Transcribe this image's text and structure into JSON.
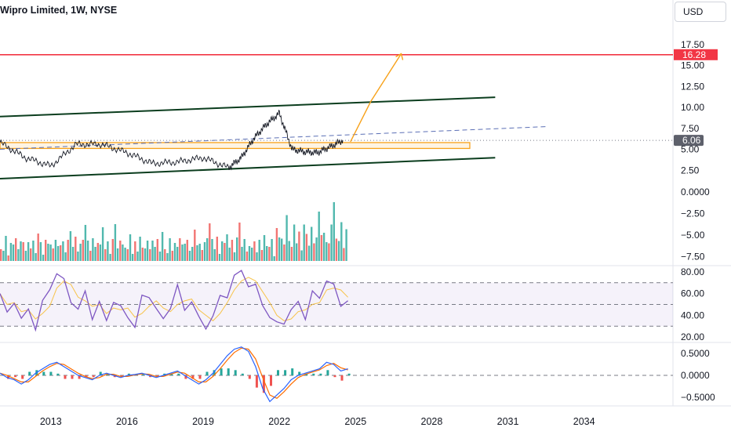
{
  "header": {
    "title": "Wipro Limited, 1W, NYSE",
    "currency": "USD"
  },
  "colors": {
    "price": "#131722",
    "channel": "#0b3d1e",
    "resistance": "#f23645",
    "projection": "#f7a21b",
    "trend_dash": "#5b6fb5",
    "rsi": "#7e57c2",
    "rsi_ma": "#f7c34a",
    "macd": "#2962ff",
    "signal": "#ff6d00",
    "vol_up": "#26a69a",
    "vol_down": "#ef5350"
  },
  "chart_data": [
    {
      "type": "line",
      "title": "Wipro Limited, 1W, NYSE",
      "x_ticks": [
        "2013",
        "2016",
        "2019",
        "2022",
        "2025",
        "2028",
        "2031",
        "2034"
      ],
      "y_ticks": [
        "17.50",
        "15.00",
        "12.50",
        "10.00",
        "7.50",
        "5.00",
        "2.50"
      ],
      "ylim": [
        0,
        20
      ],
      "series": [
        {
          "x": [
            2011.0,
            2012.0,
            2013.0,
            2014.0,
            2015.0,
            2016.0,
            2017.0,
            2018.0,
            2019.0,
            2020.0,
            2020.5,
            2021.0,
            2021.5,
            2022.0,
            2022.5,
            2023.0,
            2023.5,
            2024.0,
            2024.5
          ],
          "values": [
            5.8,
            4.0,
            3.0,
            5.6,
            5.6,
            4.6,
            3.3,
            3.5,
            4.0,
            2.8,
            4.0,
            6.3,
            8.0,
            9.3,
            5.0,
            4.7,
            4.6,
            5.3,
            6.06
          ]
        }
      ],
      "last_price_label": "6.06",
      "resistance_label": "16.28",
      "annotations": {
        "channel_upper": [
          [
            2011.0,
            8.9
          ],
          [
            2030.5,
            11.2
          ]
        ],
        "channel_lower": [
          [
            2011.0,
            1.5
          ],
          [
            2030.5,
            4.0
          ]
        ],
        "trendline_dashed": [
          [
            2011.0,
            5.0
          ],
          [
            2032.5,
            7.7
          ]
        ],
        "support_zone": [
          [
            2011.0,
            5.1
          ],
          [
            2029.5,
            5.8
          ]
        ],
        "projection_arrow": [
          [
            2024.8,
            5.9
          ],
          [
            2025.6,
            10.7
          ],
          [
            2026.8,
            16.4
          ]
        ]
      }
    },
    {
      "type": "bar",
      "title": "",
      "y_ticks": [
        "0.0000",
        "−2.50",
        "−5.00",
        "−7.50"
      ],
      "ylim": [
        -8,
        0
      ],
      "values": [
        5,
        3,
        8,
        2,
        6,
        4,
        9,
        3,
        5,
        7,
        2,
        8,
        4,
        6,
        3,
        10,
        5,
        2,
        7,
        4,
        6,
        3,
        9,
        5,
        4,
        8,
        2,
        6,
        12,
        4,
        7,
        3,
        5,
        9,
        14,
        6,
        4,
        8,
        3,
        7,
        5,
        11,
        4,
        6,
        3,
        8,
        13,
        5,
        7,
        4
      ]
    },
    {
      "type": "line",
      "title": "",
      "y_ticks": [
        "80.00",
        "60.00",
        "40.00",
        "20.00"
      ],
      "ylim": [
        15,
        85
      ],
      "band": [
        30,
        70
      ],
      "midline": 50,
      "rsi": [
        60,
        40,
        55,
        35,
        45,
        30,
        50,
        65,
        80,
        70,
        55,
        45,
        60,
        40,
        50,
        35,
        55,
        45,
        40,
        30,
        55,
        60,
        45,
        35,
        50,
        65,
        45,
        55,
        35,
        30,
        40,
        55,
        60,
        75,
        80,
        70,
        65,
        50,
        40,
        30,
        35,
        45,
        50,
        40,
        60,
        55,
        75,
        65,
        50,
        55
      ]
    },
    {
      "type": "line",
      "title": "",
      "y_ticks": [
        "0.5000",
        "0.0000",
        "−0.5000"
      ],
      "ylim": [
        -0.7,
        0.7
      ],
      "macd": [
        0.05,
        -0.05,
        -0.1,
        -0.2,
        -0.1,
        0.05,
        0.15,
        0.25,
        0.3,
        0.2,
        0.1,
        0.0,
        -0.05,
        -0.1,
        0.0,
        0.05,
        0.0,
        -0.05,
        0.0,
        0.02,
        0.05,
        0.0,
        -0.05,
        0.0,
        0.05,
        0.1,
        0.0,
        -0.1,
        -0.2,
        -0.1,
        0.05,
        0.25,
        0.45,
        0.6,
        0.65,
        0.55,
        0.2,
        -0.3,
        -0.6,
        -0.45,
        -0.3,
        -0.1,
        0.0,
        0.05,
        0.1,
        0.15,
        0.3,
        0.25,
        0.1,
        0.15
      ]
    }
  ]
}
